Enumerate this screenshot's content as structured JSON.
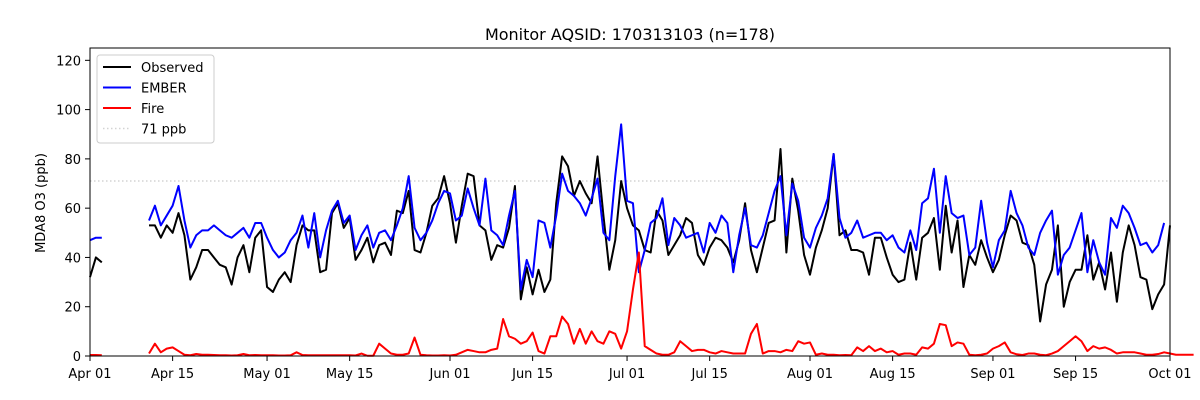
{
  "chart_data": {
    "type": "line",
    "title": "Monitor AQSID: 170313103 (n=178)",
    "xlabel": "",
    "ylabel": "MDA8 O3 (ppb)",
    "xlim": [
      "2023-04-01",
      "2023-10-01"
    ],
    "ylim": [
      0,
      125
    ],
    "x_ticks": [
      {
        "date": "2023-04-01",
        "label": "Apr 01"
      },
      {
        "date": "2023-04-15",
        "label": "Apr 15"
      },
      {
        "date": "2023-05-01",
        "label": "May 01"
      },
      {
        "date": "2023-05-15",
        "label": "May 15"
      },
      {
        "date": "2023-06-01",
        "label": "Jun 01"
      },
      {
        "date": "2023-06-15",
        "label": "Jun 15"
      },
      {
        "date": "2023-07-01",
        "label": "Jul 01"
      },
      {
        "date": "2023-07-15",
        "label": "Jul 15"
      },
      {
        "date": "2023-08-01",
        "label": "Aug 01"
      },
      {
        "date": "2023-08-15",
        "label": "Aug 15"
      },
      {
        "date": "2023-09-01",
        "label": "Sep 01"
      },
      {
        "date": "2023-09-15",
        "label": "Sep 15"
      },
      {
        "date": "2023-10-01",
        "label": "Oct 01"
      }
    ],
    "y_ticks": [
      0,
      20,
      40,
      60,
      80,
      100,
      120
    ],
    "grid": false,
    "legend_position": "top-left",
    "reference_line": {
      "name": "71 ppb",
      "value": 71,
      "color": "#d3d3d3",
      "style": "dotted"
    },
    "series": [
      {
        "name": "Observed",
        "color": "#000000",
        "segments": [
          {
            "start": "2023-04-01",
            "values": [
              32,
              40,
              38
            ]
          },
          {
            "start": "2023-04-11",
            "values": [
              53,
              53,
              48,
              53,
              50,
              58,
              49,
              31,
              36,
              43,
              43,
              40,
              37,
              36,
              29,
              40,
              45,
              34,
              48,
              51,
              28,
              26,
              31,
              34,
              30,
              45,
              53,
              51,
              51,
              34,
              35,
              58,
              62,
              52,
              56,
              39,
              43,
              48,
              38,
              45,
              46,
              41,
              59,
              58,
              67,
              43,
              42,
              50,
              61,
              64,
              73,
              62,
              46,
              61,
              74,
              73,
              53,
              51,
              39,
              45,
              44,
              52,
              69,
              23,
              36,
              25,
              35,
              26,
              31,
              62,
              81,
              77,
              65,
              71,
              66,
              62,
              81,
              57,
              35,
              47,
              71,
              60,
              53,
              51,
              43,
              42,
              59,
              55,
              41,
              45,
              49,
              56,
              54,
              41,
              37,
              44,
              48,
              47,
              44,
              38,
              47,
              62,
              43,
              34,
              44,
              54,
              55,
              84,
              42,
              72,
              59,
              41,
              33,
              44,
              51,
              60,
              82,
              49,
              51,
              43,
              43,
              42,
              33,
              48,
              48,
              40,
              33,
              30,
              31,
              46,
              31,
              48,
              50,
              56,
              35,
              61,
              42,
              55,
              28,
              41,
              37,
              47,
              40,
              34,
              39,
              49,
              57,
              55,
              46,
              45,
              37,
              14,
              29,
              35,
              53,
              20,
              30,
              35,
              35,
              49,
              31,
              38,
              27,
              42,
              22,
              42,
              53,
              45,
              32,
              31,
              19,
              25,
              29,
              53
            ]
          }
        ]
      },
      {
        "name": "EMBER",
        "color": "#0000ff",
        "segments": [
          {
            "start": "2023-04-01",
            "values": [
              47,
              48,
              48
            ]
          },
          {
            "start": "2023-04-11",
            "values": [
              55,
              61,
              53,
              57,
              61,
              69,
              55,
              44,
              49,
              51,
              51,
              53,
              51,
              49,
              48,
              50,
              52,
              48,
              54,
              54,
              48,
              43,
              40,
              42,
              47,
              50,
              57,
              44,
              58,
              40,
              51,
              59,
              63,
              54,
              57,
              43,
              49,
              53,
              44,
              50,
              51,
              47,
              53,
              60,
              73,
              52,
              47,
              50,
              55,
              62,
              67,
              66,
              55,
              57,
              68,
              60,
              53,
              72,
              51,
              49,
              45,
              57,
              67,
              27,
              39,
              32,
              55,
              54,
              44,
              57,
              74,
              67,
              65,
              62,
              57,
              64,
              72,
              50,
              47,
              73,
              94,
              63,
              62,
              34,
              43,
              54,
              56,
              64,
              45,
              56,
              53,
              48,
              49,
              50,
              42,
              54,
              50,
              57,
              54,
              34,
              49,
              60,
              45,
              44,
              49,
              58,
              67,
              73,
              49,
              70,
              63,
              48,
              44,
              52,
              57,
              64,
              82,
              56,
              48,
              50,
              55,
              48,
              49,
              50,
              50,
              47,
              49,
              44,
              42,
              51,
              43,
              62,
              64,
              76,
              50,
              73,
              58,
              56,
              57,
              41,
              44,
              63,
              46,
              36,
              47,
              51,
              67,
              58,
              53,
              44,
              41,
              50,
              55,
              59,
              33,
              41,
              44,
              51,
              58,
              34,
              47,
              38,
              33,
              56,
              52,
              61,
              58,
              52,
              45,
              46,
              42,
              45,
              54
            ]
          }
        ]
      },
      {
        "name": "Fire",
        "color": "#ff0000",
        "segments": [
          {
            "start": "2023-04-01",
            "values": [
              0.4,
              0.4,
              0.3
            ]
          },
          {
            "start": "2023-04-11",
            "values": [
              1,
              5,
              1.5,
              3,
              3.5,
              2,
              0.5,
              0.3,
              0.8,
              0.5,
              0.5,
              0.4,
              0.3,
              0.3,
              0.2,
              0.3,
              0.8,
              0.3,
              0.4,
              0.3,
              0.3,
              0.3,
              0.2,
              0.2,
              0.3,
              1.5,
              0.4,
              0.3,
              0.3,
              0.3,
              0.3,
              0.3,
              0.3,
              0.3,
              0.3,
              0.2,
              1,
              0.1,
              0.1,
              5,
              3,
              1,
              0.5,
              0.5,
              1,
              7.5,
              0.5,
              0.3,
              0.2,
              0.2,
              0.3,
              0.2,
              0.5,
              1.5,
              2.5,
              2,
              1.5,
              1.5,
              2.5,
              3,
              15,
              8,
              7,
              5,
              6,
              9.5,
              2,
              1,
              8,
              8,
              16,
              13,
              5,
              11,
              5,
              10,
              6,
              5,
              10,
              9,
              3,
              10,
              27,
              42,
              4,
              2.5,
              1,
              0.5,
              0.5,
              1.5,
              6,
              4,
              2,
              2.5,
              2.5,
              1.5,
              1,
              2,
              1.5,
              1,
              1,
              1,
              9,
              13,
              1,
              2,
              2,
              1.5,
              2.5,
              2,
              6,
              5,
              5.5,
              0.5,
              1,
              0.5,
              0.5,
              0.3,
              0.4,
              0.3,
              3.5,
              2,
              4,
              2,
              3,
              1.5,
              2,
              0.5,
              1,
              1,
              0.5,
              3.5,
              3,
              5,
              13,
              12.5,
              4,
              5.5,
              5,
              0.5,
              0.3,
              0.5,
              1,
              3,
              4,
              5.5,
              1.5,
              0.7,
              0.4,
              1,
              1,
              0.5,
              0.3,
              1,
              2,
              4,
              6,
              8,
              6,
              2,
              4,
              3,
              3.5,
              2.5,
              1,
              1.5,
              1.5,
              1.5,
              1,
              0.5,
              0.5,
              0.8,
              1.5,
              1,
              0.5,
              0.5,
              0.5,
              0.5
            ]
          }
        ]
      }
    ]
  }
}
